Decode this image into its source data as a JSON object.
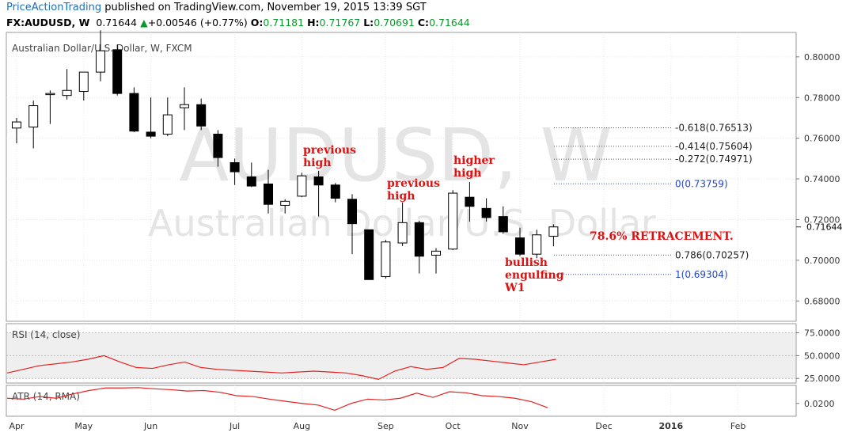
{
  "header": {
    "brand": "PriceActionTrading",
    "published": " published on TradingView.com, November 19, 2015 13:39 SGT",
    "symbol": "FX:AUDUSD, W",
    "last": "0.71644",
    "change": "+0.00546 (+0.77%)",
    "o_label": "O:",
    "o": "0.71181",
    "h_label": "H:",
    "h": "0.71767",
    "l_label": "L:",
    "l": "0.70691",
    "c_label": "C:",
    "c": "0.71644"
  },
  "chart_data": {
    "type": "candlestick",
    "title": "Australian Dollar/U.S. Dollar, W, FXCM",
    "watermark_big": "AUDUSD, W",
    "watermark_small": "Australian Dollar/U.S. Dollar",
    "ylim": [
      0.67,
      0.812
    ],
    "y_ticks": [
      "0.80000",
      "0.78000",
      "0.76000",
      "0.74000",
      "0.72000",
      "0.70000",
      "0.68000"
    ],
    "y_tick_values": [
      0.8,
      0.78,
      0.76,
      0.74,
      0.72,
      0.7,
      0.68
    ],
    "last_price_label": "0.71644",
    "x_labels": [
      "Apr",
      "May",
      "Jun",
      "Jul",
      "Aug",
      "Sep",
      "Oct",
      "Nov",
      "Dec",
      "2016",
      "Feb"
    ],
    "x_label_weeks": [
      0,
      4,
      8,
      13,
      17,
      22,
      26,
      30,
      35,
      39,
      43
    ],
    "candles": [
      {
        "o": 0.765,
        "h": 0.77,
        "l": 0.7575,
        "c": 0.768
      },
      {
        "o": 0.7655,
        "h": 0.7785,
        "l": 0.755,
        "c": 0.776
      },
      {
        "o": 0.7815,
        "h": 0.7835,
        "l": 0.767,
        "c": 0.782
      },
      {
        "o": 0.781,
        "h": 0.794,
        "l": 0.779,
        "c": 0.7835
      },
      {
        "o": 0.783,
        "h": 0.792,
        "l": 0.7785,
        "c": 0.7925
      },
      {
        "o": 0.7925,
        "h": 0.813,
        "l": 0.788,
        "c": 0.803
      },
      {
        "o": 0.8035,
        "h": 0.806,
        "l": 0.781,
        "c": 0.782
      },
      {
        "o": 0.782,
        "h": 0.785,
        "l": 0.763,
        "c": 0.7635
      },
      {
        "o": 0.763,
        "h": 0.78,
        "l": 0.76,
        "c": 0.761
      },
      {
        "o": 0.762,
        "h": 0.78,
        "l": 0.761,
        "c": 0.7715
      },
      {
        "o": 0.775,
        "h": 0.785,
        "l": 0.764,
        "c": 0.7765
      },
      {
        "o": 0.7765,
        "h": 0.7795,
        "l": 0.764,
        "c": 0.766
      },
      {
        "o": 0.762,
        "h": 0.764,
        "l": 0.746,
        "c": 0.7505
      },
      {
        "o": 0.748,
        "h": 0.75,
        "l": 0.737,
        "c": 0.7435
      },
      {
        "o": 0.741,
        "h": 0.748,
        "l": 0.736,
        "c": 0.7365
      },
      {
        "o": 0.7375,
        "h": 0.7445,
        "l": 0.723,
        "c": 0.7275
      },
      {
        "o": 0.727,
        "h": 0.73,
        "l": 0.723,
        "c": 0.729
      },
      {
        "o": 0.7315,
        "h": 0.743,
        "l": 0.731,
        "c": 0.7415
      },
      {
        "o": 0.741,
        "h": 0.744,
        "l": 0.7215,
        "c": 0.737
      },
      {
        "o": 0.737,
        "h": 0.738,
        "l": 0.7285,
        "c": 0.7305
      },
      {
        "o": 0.73,
        "h": 0.7325,
        "l": 0.703,
        "c": 0.718
      },
      {
        "o": 0.715,
        "h": 0.715,
        "l": 0.6905,
        "c": 0.6905
      },
      {
        "o": 0.692,
        "h": 0.71,
        "l": 0.691,
        "c": 0.709
      },
      {
        "o": 0.7085,
        "h": 0.7285,
        "l": 0.707,
        "c": 0.7185
      },
      {
        "o": 0.7185,
        "h": 0.7195,
        "l": 0.6935,
        "c": 0.702
      },
      {
        "o": 0.7025,
        "h": 0.706,
        "l": 0.6935,
        "c": 0.7045
      },
      {
        "o": 0.7055,
        "h": 0.7345,
        "l": 0.705,
        "c": 0.733
      },
      {
        "o": 0.731,
        "h": 0.7385,
        "l": 0.719,
        "c": 0.7265
      },
      {
        "o": 0.7255,
        "h": 0.7305,
        "l": 0.719,
        "c": 0.721
      },
      {
        "o": 0.7215,
        "h": 0.7265,
        "l": 0.713,
        "c": 0.714
      },
      {
        "o": 0.711,
        "h": 0.716,
        "l": 0.702,
        "c": 0.703
      },
      {
        "o": 0.703,
        "h": 0.715,
        "l": 0.701,
        "c": 0.7125
      },
      {
        "o": 0.7118,
        "h": 0.7177,
        "l": 0.7069,
        "c": 0.7164
      }
    ],
    "fib_levels": [
      {
        "label": "-0.618(0.76513)",
        "value": 0.76513,
        "color": "#222222"
      },
      {
        "label": "-0.414(0.75604)",
        "value": 0.75604,
        "color": "#222222"
      },
      {
        "label": "-0.272(0.74971)",
        "value": 0.74971,
        "color": "#222222"
      },
      {
        "label": "0(0.73759)",
        "value": 0.73759,
        "color": "#2244cc"
      },
      {
        "label": "0.786(0.70257)",
        "value": 0.70257,
        "color": "#222222"
      },
      {
        "label": "1(0.69304)",
        "value": 0.69304,
        "color": "#2244cc"
      }
    ],
    "annotations": [
      {
        "text": "previous high",
        "lines": [
          "previous",
          "high"
        ]
      },
      {
        "text": "previous high",
        "lines": [
          "previous",
          "high"
        ]
      },
      {
        "text": "higher high",
        "lines": [
          "higher",
          "high"
        ]
      },
      {
        "text": "78.6% RETRACEMENT.",
        "lines": [
          "78.6% RETRACEMENT."
        ]
      },
      {
        "text": "bullish engulfing W1",
        "lines": [
          "bullish",
          "engulfing",
          "W1"
        ]
      }
    ],
    "rsi": {
      "label": "RSI (14, close)",
      "ticks": [
        "75.0000",
        "50.0000",
        "25.0000"
      ],
      "tick_values": [
        75,
        50,
        25
      ],
      "range": [
        20,
        85
      ],
      "values": [
        31,
        35,
        39,
        41,
        43,
        46,
        50,
        43,
        37,
        36,
        40,
        43,
        37,
        35,
        34,
        33,
        32,
        31,
        32,
        33,
        32,
        31,
        28,
        24,
        33,
        38,
        35,
        37,
        47,
        46,
        44,
        42,
        40,
        43,
        46
      ]
    },
    "atr": {
      "label": "ATR (14, RMA)",
      "ticks": [
        "0.0200"
      ],
      "tick_values": [
        0.02
      ],
      "range": [
        0.0125,
        0.0305
      ],
      "values": [
        0.023,
        0.0225,
        0.024,
        0.023,
        0.0255,
        0.0275,
        0.029,
        0.029,
        0.0292,
        0.0285,
        0.028,
        0.0272,
        0.0275,
        0.0265,
        0.0245,
        0.024,
        0.0225,
        0.0212,
        0.02,
        0.019,
        0.016,
        0.02,
        0.0225,
        0.022,
        0.023,
        0.026,
        0.0235,
        0.0268,
        0.0262,
        0.0245,
        0.024,
        0.023,
        0.021,
        0.0175
      ]
    },
    "colors": {
      "bull": "#ffffff",
      "bear": "#000000",
      "outline": "#000000",
      "rsi_line": "#e52222",
      "atr_line": "#e52222",
      "grid": "#e6e6e6",
      "pane_bg": "#efefef"
    }
  }
}
